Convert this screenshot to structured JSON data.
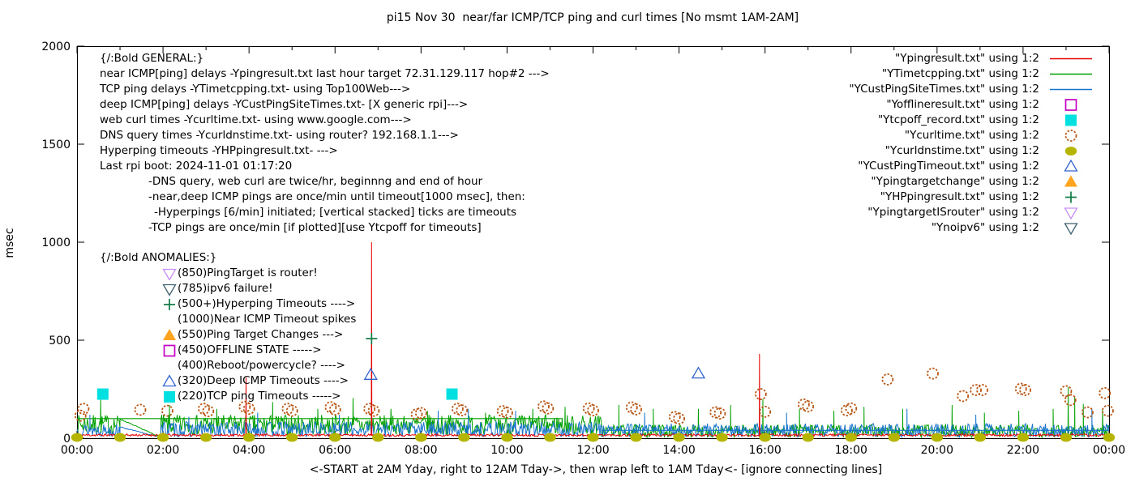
{
  "chart": {
    "title": "pi15 Nov 30  near/far ICMP/TCP ping and curl times [No msmt 1AM-2AM]",
    "ylabel": "msec",
    "xlabel": "<-START at 2AM Yday, right to 12AM Tday->, then wrap left to 1AM Tday<- [ignore connecting lines]"
  },
  "colors": {
    "red": "#e60000",
    "green": "#00a000",
    "blue": "#1874cd",
    "magenta": "#c400c4",
    "cyan": "#00e0e0",
    "darkorange": "#b85615",
    "olive": "#b5b500",
    "blue2": "#3465cd",
    "orange": "#ffa41e",
    "darkgreen": "#0e7a45",
    "violet": "#c98df5",
    "slate": "#3e5f6f",
    "axis": "#000000"
  },
  "annotations": {
    "general": {
      "header": "{/:Bold GENERAL:}",
      "lines": [
        {
          "text": "near ICMP[ping] delays -Ypingresult.txt last hour target 72.31.129.117 hop#2 --->",
          "indent": 0
        },
        {
          "text": "TCP ping delays -YTimetcpping.txt- using Top100Web--->",
          "indent": 0
        },
        {
          "text": "deep ICMP[ping] delays -YCustPingSiteTimes.txt- [X generic rpi]--->",
          "indent": 0
        },
        {
          "text": "web curl times -Ycurltime.txt- using www.google.com--->",
          "indent": 0
        },
        {
          "text": "DNS query times -Ycurldnstime.txt- using router? 192.168.1.1--->",
          "indent": 0
        },
        {
          "text": "Hyperping timeouts -YHPpingresult.txt- --->",
          "indent": 0
        },
        {
          "text": "Last rpi boot: 2024-11-01 01:17:20",
          "indent": 0
        },
        {
          "text": "-DNS query, web curl are twice/hr, beginnng and end of hour",
          "indent": 1
        },
        {
          "text": "-near,deep ICMP pings are once/min until timeout[1000 msec], then:",
          "indent": 1
        },
        {
          "text": "-Hyperpings [6/min] initiated; [vertical stacked] ticks are timeouts",
          "indent": 2
        },
        {
          "text": "-TCP pings are once/min [if plotted][use Ytcpoff for timeouts]",
          "indent": 1
        }
      ]
    },
    "anomalies": {
      "header": "{/:Bold ANOMALIES:}",
      "items": [
        {
          "marker": "triangle-down-open",
          "color": "violet",
          "text": "(850)PingTarget is router!"
        },
        {
          "marker": "triangle-down-open",
          "color": "slate",
          "text": "(785)ipv6 failure!"
        },
        {
          "marker": "plus",
          "color": "darkgreen",
          "text": "(500+)Hyperping Timeouts ---->"
        },
        {
          "marker": "none",
          "color": "axis",
          "text": "(1000)Near ICMP Timeout spikes"
        },
        {
          "marker": "triangle-up-filled",
          "color": "orange",
          "text": "(550)Ping Target Changes --->"
        },
        {
          "marker": "square-open",
          "color": "magenta",
          "text": "(450)OFFLINE STATE ----->"
        },
        {
          "marker": "none",
          "color": "axis",
          "text": "(400)Reboot/powercycle? ---->"
        },
        {
          "marker": "triangle-up-open",
          "color": "blue2",
          "text": "(320)Deep ICMP Timeouts ---->"
        },
        {
          "marker": "square-filled",
          "color": "cyan",
          "text": "(220)TCP ping Timeouts ----->"
        }
      ]
    }
  },
  "legend": {
    "items": [
      {
        "label": "\"Ypingresult.txt\" using 1:2",
        "marker": "line",
        "color": "red"
      },
      {
        "label": "\"YTimetcpping.txt\" using 1:2",
        "marker": "line",
        "color": "green"
      },
      {
        "label": "\"YCustPingSiteTimes.txt\" using 1:2",
        "marker": "line",
        "color": "blue"
      },
      {
        "label": "\"Yofflineresult.txt\" using 1:2",
        "marker": "square-open",
        "color": "magenta"
      },
      {
        "label": "\"Ytcpoff_record.txt\" using 1:2",
        "marker": "square-filled",
        "color": "cyan"
      },
      {
        "label": "\"Ycurltime.txt\" using 1:2",
        "marker": "circle-open",
        "color": "darkorange"
      },
      {
        "label": "\"Ycurldnstime.txt\" using 1:2",
        "marker": "circle-filled",
        "color": "olive"
      },
      {
        "label": "\"YCustPingTimeout.txt\" using 1:2",
        "marker": "triangle-up-open",
        "color": "blue2"
      },
      {
        "label": "\"Ypingtargetchange\" using 1:2",
        "marker": "triangle-up-filled",
        "color": "orange"
      },
      {
        "label": "\"YHPpingresult.txt\" using 1:2",
        "marker": "plus",
        "color": "darkgreen"
      },
      {
        "label": "\"YpingtargetISrouter\" using 1:2",
        "marker": "triangle-down-open",
        "color": "violet"
      },
      {
        "label": "\"Ynoipv6\" using 1:2",
        "marker": "triangle-down-open",
        "color": "slate"
      }
    ]
  },
  "chart_data": {
    "type": "line",
    "x_axis": {
      "hours_span": 24,
      "major_every_h": 2,
      "minor_every_h": 1,
      "tick_labels": [
        "00:00",
        "02:00",
        "04:00",
        "06:00",
        "08:00",
        "10:00",
        "12:00",
        "14:00",
        "16:00",
        "18:00",
        "20:00",
        "22:00",
        "00:00"
      ]
    },
    "y_axis": {
      "range": [
        0,
        2000
      ],
      "tick_values": [
        0,
        500,
        1000,
        1500,
        2000
      ],
      "tick_labels": [
        "0",
        "500",
        "1000",
        "1500",
        "2000"
      ]
    },
    "series": [
      {
        "name": "YTimetcpping.txt",
        "style": "line",
        "color": "green",
        "z": 1,
        "seed": 7,
        "segments": [
          {
            "h0": 0,
            "h1": 1.0,
            "lo0": 20,
            "hi0": 120,
            "lo1": 20,
            "hi1": 120
          },
          {
            "h0": 1.0,
            "h1": 1.95,
            "lo0": 95,
            "hi0": 100,
            "lo1": 2,
            "hi1": 6
          },
          {
            "h0": 1.95,
            "h1": 12.2,
            "lo0": 15,
            "hi0": 120,
            "lo1": 15,
            "hi1": 120
          },
          {
            "h0": 12.2,
            "h1": 24,
            "lo0": 3,
            "hi0": 70,
            "lo1": 3,
            "hi1": 70
          }
        ],
        "flats": [
          [
            0,
            11.3,
            100
          ]
        ],
        "spikes": [
          [
            0.55,
            205
          ],
          [
            2.15,
            170
          ],
          [
            3.25,
            150
          ],
          [
            4.55,
            185
          ],
          [
            5.6,
            150
          ],
          [
            6.42,
            205
          ],
          [
            7.3,
            150
          ],
          [
            8.15,
            140
          ],
          [
            9.5,
            130
          ],
          [
            10.6,
            150
          ],
          [
            11.35,
            160
          ],
          [
            12.6,
            170
          ],
          [
            13.4,
            150
          ],
          [
            14.45,
            150
          ],
          [
            15.2,
            170
          ],
          [
            15.95,
            200
          ],
          [
            16.8,
            150
          ],
          [
            17.6,
            140
          ],
          [
            18.3,
            160
          ],
          [
            19.2,
            150
          ],
          [
            20.35,
            170
          ],
          [
            21.1,
            130
          ],
          [
            21.9,
            140
          ],
          [
            22.7,
            150
          ],
          [
            23.05,
            260
          ],
          [
            23.2,
            215
          ],
          [
            23.4,
            175
          ],
          [
            23.85,
            150
          ]
        ]
      },
      {
        "name": "YCustPingSiteTimes.txt",
        "style": "line",
        "color": "blue",
        "z": 2,
        "seed": 13,
        "segments": [
          {
            "h0": 0,
            "h1": 1.0,
            "lo0": 8,
            "hi0": 75,
            "lo1": 8,
            "hi1": 75
          },
          {
            "h0": 1.0,
            "h1": 1.95,
            "lo0": 55,
            "hi0": 60,
            "lo1": 2,
            "hi1": 5
          },
          {
            "h0": 1.95,
            "h1": 12.2,
            "lo0": 5,
            "hi0": 85,
            "lo1": 5,
            "hi1": 85
          },
          {
            "h0": 12.2,
            "h1": 24,
            "lo0": 5,
            "hi0": 75,
            "lo1": 5,
            "hi1": 75
          }
        ],
        "flats": [
          [
            12.2,
            24,
            40
          ]
        ],
        "spikes": [
          [
            0.3,
            120
          ],
          [
            2.6,
            110
          ],
          [
            4.2,
            130
          ],
          [
            6.1,
            120
          ],
          [
            8.4,
            140
          ],
          [
            9.1,
            150
          ],
          [
            10.2,
            140
          ],
          [
            13.2,
            130
          ],
          [
            16.5,
            130
          ],
          [
            19.3,
            150
          ],
          [
            20.9,
            120
          ],
          [
            23.6,
            150
          ]
        ]
      },
      {
        "name": "Ypingresult.txt",
        "style": "line",
        "color": "red",
        "z": 3,
        "seed": 11,
        "segments": [
          {
            "h0": 0,
            "h1": 24,
            "lo0": 10,
            "hi0": 22,
            "lo1": 10,
            "hi1": 22
          }
        ],
        "flats": [],
        "spikes": [
          [
            3.93,
            310
          ],
          [
            6.85,
            1000
          ],
          [
            15.87,
            430
          ]
        ]
      },
      {
        "name": "Ycurltime.txt",
        "style": "points",
        "marker": "circle-open",
        "color": "darkorange",
        "points": [
          [
            0.08,
            115
          ],
          [
            0.15,
            150
          ],
          [
            1.47,
            145
          ],
          [
            2.1,
            140
          ],
          [
            2.95,
            150
          ],
          [
            3.05,
            138
          ],
          [
            3.9,
            160
          ],
          [
            4.0,
            150
          ],
          [
            4.9,
            150
          ],
          [
            5.0,
            140
          ],
          [
            5.9,
            158
          ],
          [
            6.0,
            146
          ],
          [
            6.8,
            150
          ],
          [
            6.9,
            140
          ],
          [
            7.9,
            122
          ],
          [
            8.0,
            128
          ],
          [
            8.85,
            150
          ],
          [
            8.95,
            142
          ],
          [
            9.9,
            138
          ],
          [
            10.0,
            130
          ],
          [
            10.85,
            162
          ],
          [
            10.95,
            152
          ],
          [
            11.9,
            152
          ],
          [
            12.0,
            142
          ],
          [
            12.9,
            157
          ],
          [
            13.0,
            147
          ],
          [
            13.9,
            108
          ],
          [
            14.0,
            100
          ],
          [
            14.85,
            132
          ],
          [
            14.95,
            126
          ],
          [
            15.9,
            225
          ],
          [
            16.0,
            135
          ],
          [
            16.9,
            172
          ],
          [
            17.0,
            162
          ],
          [
            17.9,
            142
          ],
          [
            18.0,
            152
          ],
          [
            18.85,
            300
          ],
          [
            19.9,
            330
          ],
          [
            20.6,
            215
          ],
          [
            20.9,
            246
          ],
          [
            21.05,
            246
          ],
          [
            21.95,
            252
          ],
          [
            22.05,
            246
          ],
          [
            23.0,
            240
          ],
          [
            23.1,
            195
          ],
          [
            23.5,
            132
          ],
          [
            23.9,
            230
          ],
          [
            23.97,
            140
          ]
        ]
      },
      {
        "name": "Ycurldnstime.txt",
        "style": "points",
        "marker": "circle-filled",
        "color": "olive",
        "points": [
          [
            0,
            4
          ],
          [
            1,
            4
          ],
          [
            2,
            4
          ],
          [
            3,
            4
          ],
          [
            4,
            4
          ],
          [
            5,
            4
          ],
          [
            6,
            4
          ],
          [
            7,
            4
          ],
          [
            8,
            4
          ],
          [
            9,
            4
          ],
          [
            10,
            4
          ],
          [
            11,
            4
          ],
          [
            12,
            4
          ],
          [
            13,
            4
          ],
          [
            14,
            4
          ],
          [
            15,
            4
          ],
          [
            16,
            4
          ],
          [
            17,
            4
          ],
          [
            18,
            4
          ],
          [
            19,
            4
          ],
          [
            20,
            4
          ],
          [
            21,
            4
          ],
          [
            22,
            4
          ],
          [
            23,
            4
          ],
          [
            24,
            4
          ]
        ]
      },
      {
        "name": "Ytcpoff_record.txt",
        "style": "points",
        "marker": "square-filled",
        "color": "cyan",
        "points": [
          [
            0.6,
            225
          ],
          [
            8.72,
            225
          ]
        ]
      },
      {
        "name": "YCustPingTimeout.txt",
        "style": "points",
        "marker": "triangle-up-open",
        "color": "blue2",
        "points": [
          [
            6.83,
            323
          ],
          [
            14.45,
            330
          ]
        ]
      },
      {
        "name": "YHPpingresult.txt",
        "style": "points",
        "marker": "plus",
        "color": "darkgreen",
        "points": [
          [
            6.85,
            508
          ]
        ]
      },
      {
        "name": "Yofflineresult.txt",
        "style": "points",
        "marker": "square-open",
        "color": "magenta",
        "points": []
      },
      {
        "name": "Ypingtargetchange",
        "style": "points",
        "marker": "triangle-up-filled",
        "color": "orange",
        "points": []
      },
      {
        "name": "YpingtargetISrouter",
        "style": "points",
        "marker": "triangle-down-open",
        "color": "violet",
        "points": []
      },
      {
        "name": "Ynoipv6",
        "style": "points",
        "marker": "triangle-down-open",
        "color": "slate",
        "points": []
      }
    ]
  }
}
